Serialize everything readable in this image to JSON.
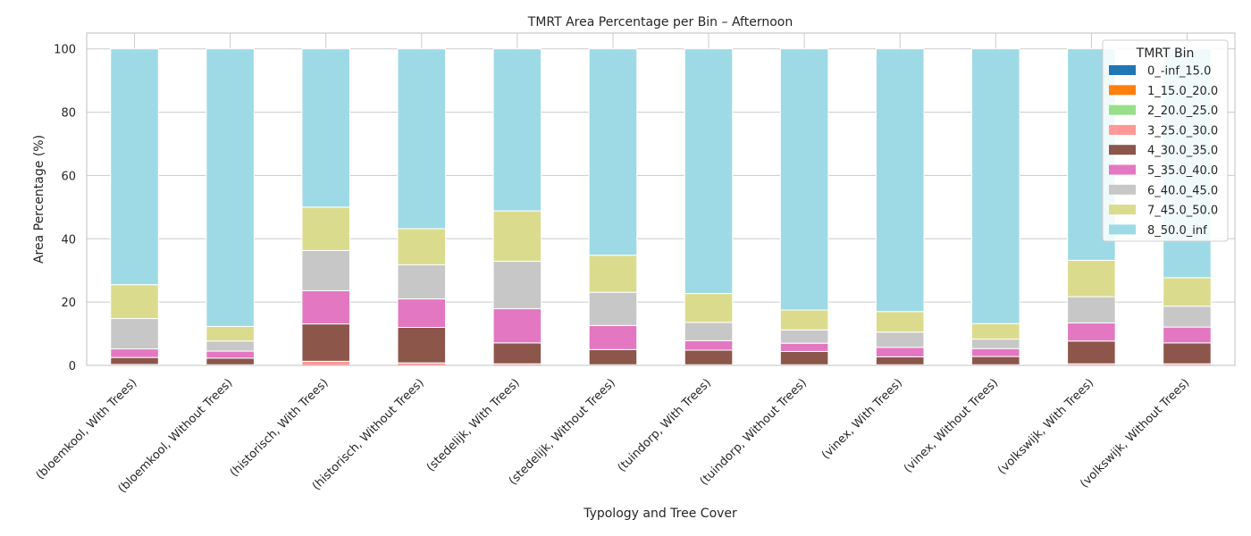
{
  "chart_data": {
    "type": "bar",
    "stacked": true,
    "title": "TMRT Area Percentage per Bin – Afternoon",
    "xlabel": "Typology and Tree Cover",
    "ylabel": "Area Percentage (%)",
    "ylim": [
      0,
      105
    ],
    "yticks": [
      0,
      20,
      40,
      60,
      80,
      100
    ],
    "grid": true,
    "legend_title": "TMRT Bin",
    "legend_position": "top-right",
    "categories": [
      "(bloemkool, With Trees)",
      "(bloemkool, Without Trees)",
      "(historisch, With Trees)",
      "(historisch, Without Trees)",
      "(stedelijk, With Trees)",
      "(stedelijk, Without Trees)",
      "(tuindorp, With Trees)",
      "(tuindorp, Without Trees)",
      "(vinex, With Trees)",
      "(vinex, Without Trees)",
      "(volkswijk, With Trees)",
      "(volkswijk, Without Trees)"
    ],
    "series": [
      {
        "name": "0_-inf_15.0",
        "color": "#1f77b4",
        "values": [
          0,
          0,
          0,
          0,
          0,
          0,
          0,
          0,
          0,
          0,
          0,
          0
        ]
      },
      {
        "name": "1_15.0_20.0",
        "color": "#ff7f0e",
        "values": [
          0,
          0,
          0,
          0,
          0,
          0,
          0,
          0,
          0,
          0,
          0,
          0
        ]
      },
      {
        "name": "2_20.0_25.0",
        "color": "#98df8a",
        "values": [
          0,
          0,
          0,
          0,
          0,
          0,
          0,
          0,
          0,
          0,
          0,
          0
        ]
      },
      {
        "name": "3_25.0_30.0",
        "color": "#ff9896",
        "values": [
          0.3,
          0.2,
          1.3,
          0.8,
          0.5,
          0.2,
          0.2,
          0.2,
          0.2,
          0.2,
          0.5,
          0.5
        ]
      },
      {
        "name": "4_30.0_35.0",
        "color": "#8c564b",
        "values": [
          2.2,
          2.1,
          11.8,
          11.2,
          6.6,
          4.8,
          4.6,
          4.2,
          2.5,
          2.6,
          7.2,
          6.6
        ]
      },
      {
        "name": "5_35.0_40.0",
        "color": "#e377c2",
        "values": [
          2.7,
          2.2,
          10.5,
          9.0,
          10.8,
          7.6,
          3.0,
          2.6,
          3.0,
          2.5,
          5.7,
          5.0
        ]
      },
      {
        "name": "6_40.0_45.0",
        "color": "#c7c7c7",
        "values": [
          9.6,
          3.2,
          12.7,
          10.8,
          15.0,
          10.5,
          5.8,
          4.2,
          4.8,
          3.0,
          8.3,
          6.6
        ]
      },
      {
        "name": "7_45.0_50.0",
        "color": "#dbdb8d",
        "values": [
          10.7,
          4.6,
          13.7,
          11.4,
          15.9,
          11.7,
          9.1,
          6.3,
          6.5,
          4.9,
          11.5,
          9.0
        ]
      },
      {
        "name": "8_50.0_inf",
        "color": "#9edae5",
        "values": [
          74.5,
          87.7,
          50.0,
          56.8,
          51.2,
          65.2,
          77.3,
          82.5,
          83.0,
          86.8,
          66.8,
          72.3
        ]
      }
    ]
  }
}
